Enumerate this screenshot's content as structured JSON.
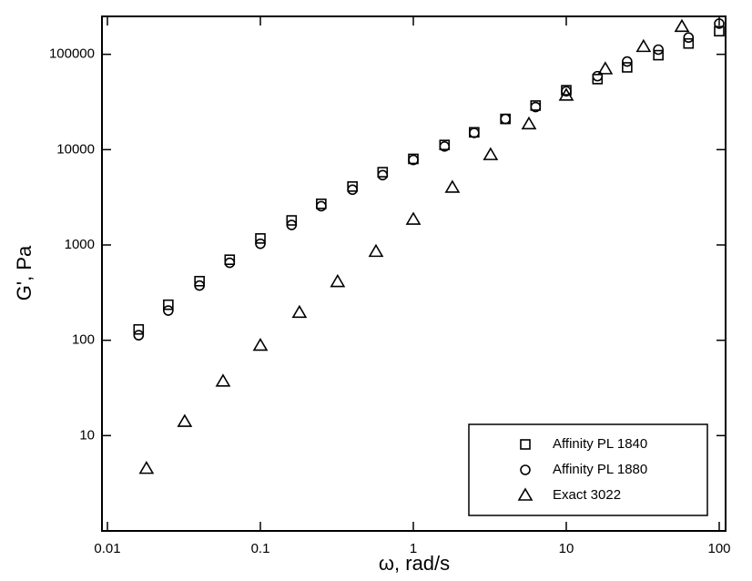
{
  "chart_data": {
    "type": "scatter",
    "x_label": "ω, rad/s",
    "y_label": "G', Pa",
    "log_x": true,
    "log_y": true,
    "xlim": [
      0.01,
      100
    ],
    "ylim": [
      1,
      250000
    ],
    "xticks": [
      0.01,
      0.1,
      1,
      10,
      100
    ],
    "yticks": [
      10,
      100,
      1000,
      10000,
      100000
    ],
    "legend_position": "lower right",
    "color": "#000000",
    "series": [
      {
        "name": "Affinity PL 1840",
        "marker": "square",
        "x": [
          0.016,
          0.025,
          0.04,
          0.063,
          0.1,
          0.16,
          0.25,
          0.4,
          0.63,
          1,
          1.6,
          2.5,
          4,
          6.3,
          10,
          16,
          25,
          40,
          63,
          100
        ],
        "values": [
          130,
          236,
          417,
          700,
          1170,
          1810,
          2700,
          4100,
          5800,
          8000,
          11200,
          15200,
          21000,
          29000,
          42000,
          55000,
          73000,
          98000,
          130000,
          175000
        ]
      },
      {
        "name": "Affinity PL 1880",
        "marker": "circle",
        "x": [
          0.016,
          0.025,
          0.04,
          0.063,
          0.1,
          0.16,
          0.25,
          0.4,
          0.63,
          1,
          1.6,
          2.5,
          4,
          6.3,
          10,
          16,
          25,
          40,
          63,
          100
        ],
        "values": [
          113,
          205,
          375,
          650,
          1030,
          1620,
          2550,
          3800,
          5400,
          7800,
          10800,
          15000,
          21000,
          28000,
          41000,
          59000,
          84000,
          112000,
          150000,
          210000
        ]
      },
      {
        "name": "Exact 3022",
        "marker": "triangle",
        "x": [
          0.018,
          0.032,
          0.057,
          0.1,
          0.18,
          0.32,
          0.57,
          1,
          1.8,
          3.2,
          5.7,
          10,
          18,
          32,
          57
        ],
        "values": [
          4.5,
          14,
          37,
          88,
          195,
          410,
          850,
          1850,
          4000,
          8800,
          18500,
          37000,
          70000,
          120000,
          195000
        ]
      }
    ]
  }
}
